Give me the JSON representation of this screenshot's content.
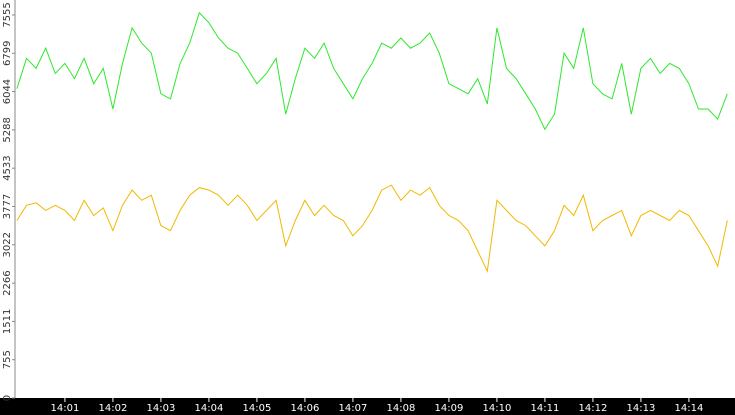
{
  "chart_data": {
    "type": "line",
    "x": [
      840,
      840.2,
      840.4,
      840.6,
      840.8,
      841,
      841.2,
      841.4,
      841.6,
      841.8,
      842,
      842.2,
      842.4,
      842.6,
      842.8,
      843,
      843.2,
      843.4,
      843.6,
      843.8,
      844,
      844.2,
      844.4,
      844.6,
      844.8,
      845,
      845.2,
      845.4,
      845.6,
      845.8,
      846,
      846.2,
      846.4,
      846.6,
      846.8,
      847,
      847.2,
      847.4,
      847.6,
      847.8,
      848,
      848.2,
      848.4,
      848.6,
      848.8,
      849,
      849.2,
      849.4,
      849.6,
      849.8,
      850,
      850.2,
      850.4,
      850.6,
      850.8,
      851,
      851.2,
      851.4,
      851.6,
      851.8,
      852,
      852.2,
      852.4,
      852.6,
      852.8,
      853,
      853.2,
      853.4,
      853.6,
      853.8,
      854,
      854.2,
      854.4,
      854.6,
      854.8
    ],
    "series": [
      {
        "color": "#2ee82e",
        "values": [
          6100,
          6700,
          6500,
          6900,
          6400,
          6600,
          6300,
          6700,
          6200,
          6500,
          5700,
          6600,
          7300,
          7000,
          6800,
          6000,
          5900,
          6600,
          7000,
          7600,
          7400,
          7100,
          6900,
          6800,
          6500,
          6200,
          6400,
          6700,
          5600,
          6300,
          6900,
          6700,
          7000,
          6500,
          6200,
          5900,
          6300,
          6600,
          7000,
          6900,
          7100,
          6900,
          7000,
          7200,
          6800,
          6200,
          6100,
          6000,
          6300,
          5800,
          7300,
          6500,
          6300,
          6000,
          5700,
          5300,
          5600,
          6800,
          6500,
          7300,
          6200,
          6000,
          5900,
          6600,
          5600,
          6500,
          6700,
          6400,
          6600,
          6500,
          6200,
          5700,
          5700,
          5500,
          6000
        ]
      },
      {
        "color": "#f2b800",
        "values": [
          3500,
          3800,
          3850,
          3700,
          3800,
          3700,
          3500,
          3900,
          3600,
          3750,
          3300,
          3800,
          4100,
          3900,
          4000,
          3400,
          3300,
          3700,
          4000,
          4150,
          4100,
          4000,
          3800,
          4000,
          3800,
          3500,
          3700,
          3900,
          3000,
          3500,
          3900,
          3600,
          3800,
          3600,
          3500,
          3200,
          3400,
          3700,
          4100,
          4200,
          3900,
          4100,
          4000,
          4150,
          3800,
          3600,
          3500,
          3300,
          2900,
          2500,
          3900,
          3700,
          3500,
          3400,
          3200,
          3000,
          3300,
          3800,
          3600,
          4000,
          3300,
          3500,
          3600,
          3700,
          3200,
          3600,
          3700,
          3600,
          3500,
          3700,
          3600,
          3300,
          3000,
          2600,
          3500
        ]
      }
    ],
    "xlim": [
      839.96,
      854.96
    ],
    "xticks": [
      {
        "value": 841,
        "label": "14:01"
      },
      {
        "value": 842,
        "label": "14:02"
      },
      {
        "value": 843,
        "label": "14:03"
      },
      {
        "value": 844,
        "label": "14:04"
      },
      {
        "value": 845,
        "label": "14:05"
      },
      {
        "value": 846,
        "label": "14:06"
      },
      {
        "value": 847,
        "label": "14:07"
      },
      {
        "value": 848,
        "label": "14:08"
      },
      {
        "value": 849,
        "label": "14:09"
      },
      {
        "value": 850,
        "label": "14:10"
      },
      {
        "value": 851,
        "label": "14:11"
      },
      {
        "value": 852,
        "label": "14:12"
      },
      {
        "value": 853,
        "label": "14:13"
      },
      {
        "value": 854,
        "label": "14:14"
      }
    ],
    "ylim": [
      0,
      7850
    ],
    "yticks": [
      0,
      755,
      1511,
      2266,
      3022,
      3777,
      4533,
      5288,
      6044,
      6799,
      7555
    ]
  }
}
